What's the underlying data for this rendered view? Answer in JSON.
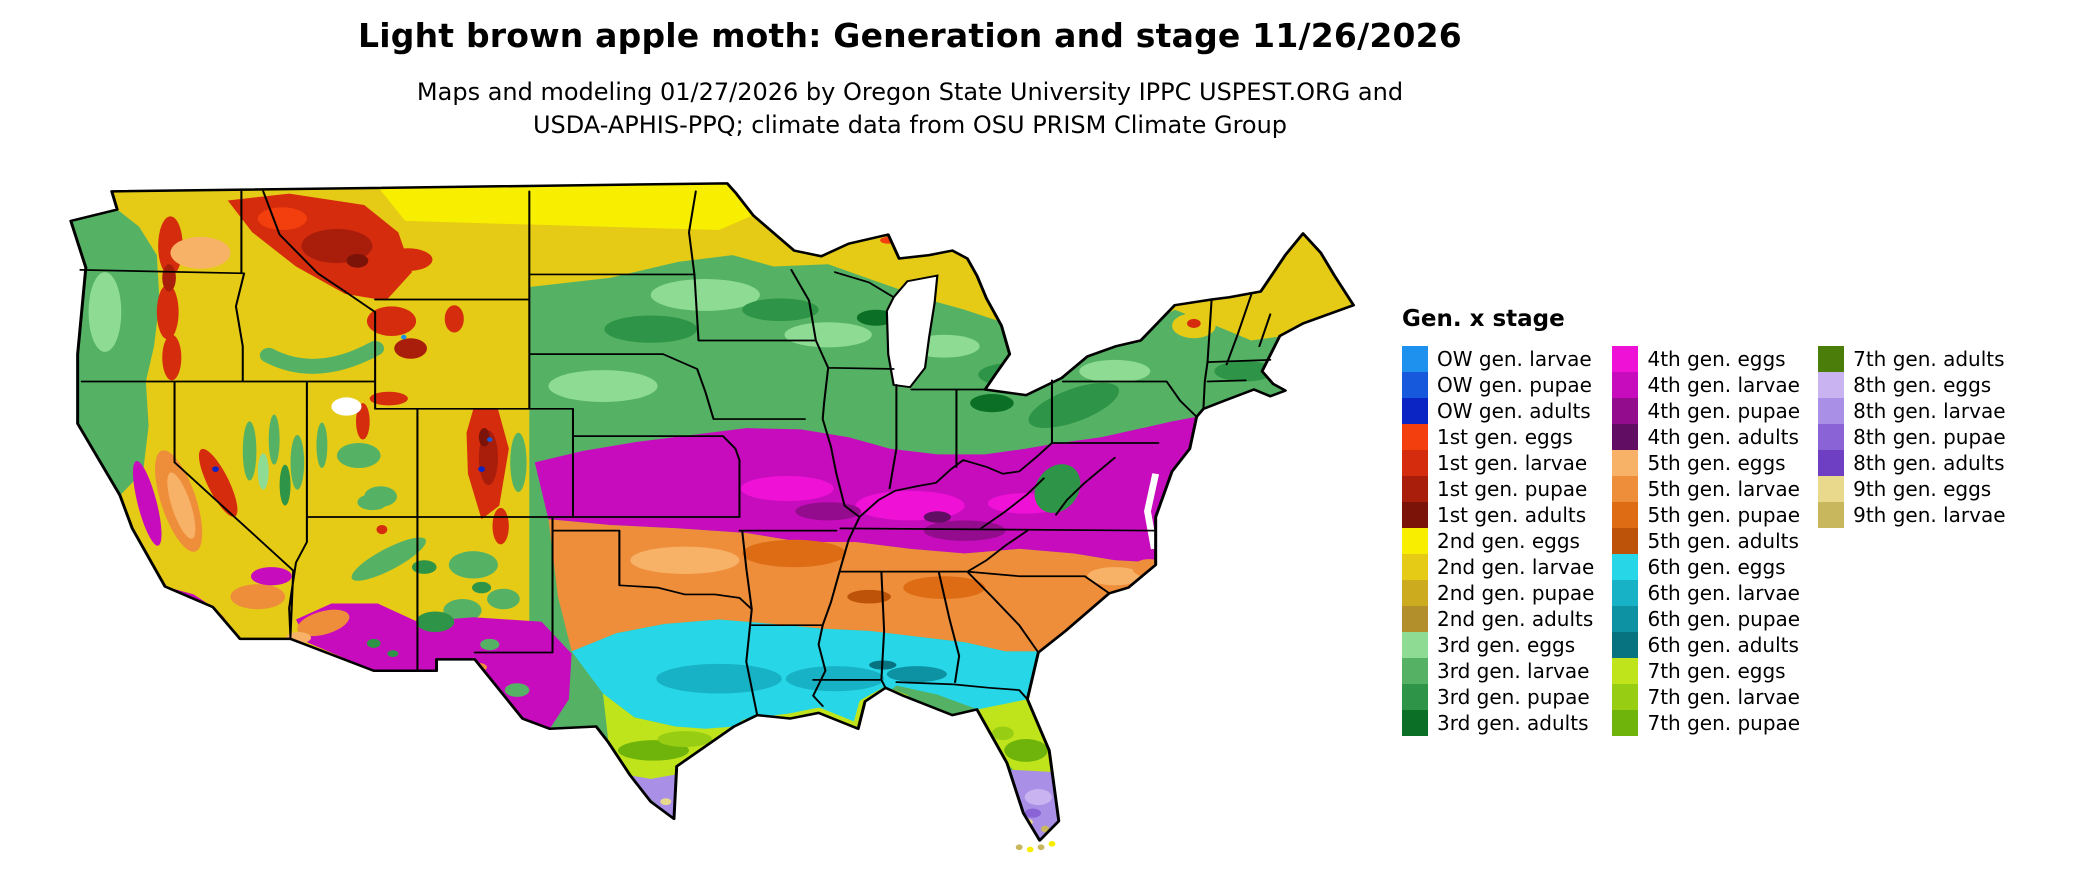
{
  "header": {
    "title": "Light brown apple moth: Generation and stage 11/26/2026",
    "subtitle_line1": "Maps and modeling 01/27/2026 by Oregon State University IPPC USPEST.ORG and",
    "subtitle_line2": "USDA-APHIS-PPQ; climate data from OSU PRISM Climate Group"
  },
  "legend": {
    "title": "Gen. x stage",
    "columns": [
      [
        {
          "label": "OW gen. larvae",
          "color_key": "ow_larvae"
        },
        {
          "label": "OW gen. pupae",
          "color_key": "ow_pupae"
        },
        {
          "label": "OW gen. adults",
          "color_key": "ow_adults"
        },
        {
          "label": "1st gen. eggs",
          "color_key": "gen1_eggs"
        },
        {
          "label": "1st gen. larvae",
          "color_key": "gen1_larvae"
        },
        {
          "label": "1st gen. pupae",
          "color_key": "gen1_pupae"
        },
        {
          "label": "1st gen. adults",
          "color_key": "gen1_adults"
        },
        {
          "label": "2nd gen. eggs",
          "color_key": "gen2_eggs"
        },
        {
          "label": "2nd gen. larvae",
          "color_key": "gen2_larvae"
        },
        {
          "label": "2nd gen. pupae",
          "color_key": "gen2_pupae"
        },
        {
          "label": "2nd gen. adults",
          "color_key": "gen2_adults"
        },
        {
          "label": "3rd gen. eggs",
          "color_key": "gen3_eggs"
        },
        {
          "label": "3rd gen. larvae",
          "color_key": "gen3_larvae"
        },
        {
          "label": "3rd gen. pupae",
          "color_key": "gen3_pupae"
        },
        {
          "label": "3rd gen. adults",
          "color_key": "gen3_adults"
        }
      ],
      [
        {
          "label": "4th gen. eggs",
          "color_key": "gen4_eggs"
        },
        {
          "label": "4th gen. larvae",
          "color_key": "gen4_larvae"
        },
        {
          "label": "4th gen. pupae",
          "color_key": "gen4_pupae"
        },
        {
          "label": "4th gen. adults",
          "color_key": "gen4_adults"
        },
        {
          "label": "5th gen. eggs",
          "color_key": "gen5_eggs"
        },
        {
          "label": "5th gen. larvae",
          "color_key": "gen5_larvae"
        },
        {
          "label": "5th gen. pupae",
          "color_key": "gen5_pupae"
        },
        {
          "label": "5th gen. adults",
          "color_key": "gen5_adults"
        },
        {
          "label": "6th gen. eggs",
          "color_key": "gen6_eggs"
        },
        {
          "label": "6th gen. larvae",
          "color_key": "gen6_larvae"
        },
        {
          "label": "6th gen. pupae",
          "color_key": "gen6_pupae"
        },
        {
          "label": "6th gen. adults",
          "color_key": "gen6_adults"
        },
        {
          "label": "7th gen. eggs",
          "color_key": "gen7_eggs"
        },
        {
          "label": "7th gen. larvae",
          "color_key": "gen7_larvae"
        },
        {
          "label": "7th gen. pupae",
          "color_key": "gen7_pupae"
        }
      ],
      [
        {
          "label": "7th gen. adults",
          "color_key": "gen7_adults"
        },
        {
          "label": "8th gen. eggs",
          "color_key": "gen8_eggs"
        },
        {
          "label": "8th gen. larvae",
          "color_key": "gen8_larvae"
        },
        {
          "label": "8th gen. pupae",
          "color_key": "gen8_pupae"
        },
        {
          "label": "8th gen. adults",
          "color_key": "gen8_adults"
        },
        {
          "label": "9th gen. eggs",
          "color_key": "gen9_eggs"
        },
        {
          "label": "9th gen. larvae",
          "color_key": "gen9_larvae"
        }
      ]
    ]
  },
  "colors": {
    "ow_larvae": "#1e90ee",
    "ow_pupae": "#1659dd",
    "ow_adults": "#0b24c4",
    "gen1_eggs": "#f23f0d",
    "gen1_larvae": "#d52c0d",
    "gen1_pupae": "#a81e0b",
    "gen1_adults": "#7c1309",
    "gen2_eggs": "#f8ee00",
    "gen2_larvae": "#e5cb16",
    "gen2_pupae": "#ccab1f",
    "gen2_adults": "#b28f2b",
    "gen3_eggs": "#8edb93",
    "gen3_larvae": "#55b264",
    "gen3_pupae": "#2e9447",
    "gen3_adults": "#0b7026",
    "gen4_eggs": "#ef11d6",
    "gen4_larvae": "#c70cbd",
    "gen4_pupae": "#930c8e",
    "gen4_adults": "#600d63",
    "gen5_eggs": "#f7b268",
    "gen5_larvae": "#ee8e3a",
    "gen5_pupae": "#dd6c15",
    "gen5_adults": "#bd5309",
    "gen6_eggs": "#27d6e7",
    "gen6_larvae": "#17b2c5",
    "gen6_pupae": "#0c92a3",
    "gen6_adults": "#077381",
    "gen7_eggs": "#c0e41c",
    "gen7_larvae": "#97cd12",
    "gen7_pupae": "#6fb40a",
    "gen7_adults": "#4a7d09",
    "gen8_eggs": "#c9b4f1",
    "gen8_larvae": "#aa8fe7",
    "gen8_pupae": "#8a63d7",
    "gen8_adults": "#6e3ec3",
    "gen9_eggs": "#e8d98d",
    "gen9_larvae": "#c8b75d"
  }
}
